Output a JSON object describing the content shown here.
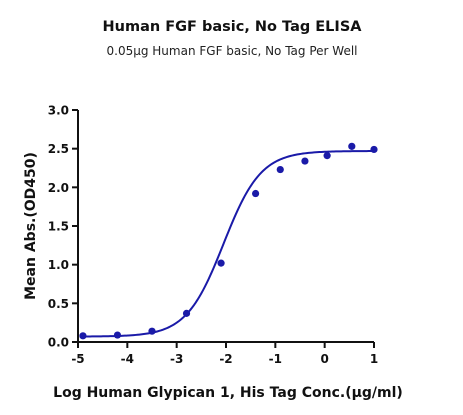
{
  "chart_data": {
    "type": "scatter",
    "title": "Human FGF basic, No Tag ELISA",
    "subtitle": "0.05μg Human FGF basic, No Tag Per Well",
    "xlabel": "Log Human Glypican 1, His Tag Conc.(μg/ml)",
    "ylabel": "Mean Abs.(OD450)",
    "xlim": [
      -5,
      1
    ],
    "ylim": [
      0,
      3
    ],
    "xticks": [
      -5,
      -4,
      -3,
      -2,
      -1,
      0,
      1
    ],
    "yticks": [
      0,
      0.5,
      1,
      1.5,
      2,
      2.5,
      3
    ],
    "xtick_labels": [
      "-5",
      "-4",
      "-3",
      "-2",
      "-1",
      "0",
      "1"
    ],
    "ytick_labels": [
      "0.0",
      "0.5",
      "1.0",
      "1.5",
      "2.0",
      "2.5",
      "3.0"
    ],
    "grid": false,
    "color": "#1a1aa8",
    "series": [
      {
        "points": [
          {
            "x": -4.9,
            "y": 0.08
          },
          {
            "x": -4.2,
            "y": 0.09
          },
          {
            "x": -3.5,
            "y": 0.14
          },
          {
            "x": -2.8,
            "y": 0.37
          },
          {
            "x": -2.1,
            "y": 1.02
          },
          {
            "x": -1.4,
            "y": 1.92
          },
          {
            "x": -0.9,
            "y": 2.23
          },
          {
            "x": -0.4,
            "y": 2.34
          },
          {
            "x": 0.05,
            "y": 2.41
          },
          {
            "x": 0.55,
            "y": 2.53
          },
          {
            "x": 1.0,
            "y": 2.49
          }
        ],
        "fit": {
          "model": "4PL",
          "bottom": 0.07,
          "top": 2.47,
          "log_ec50": -2.05,
          "hill_slope": 1.15
        }
      }
    ]
  }
}
